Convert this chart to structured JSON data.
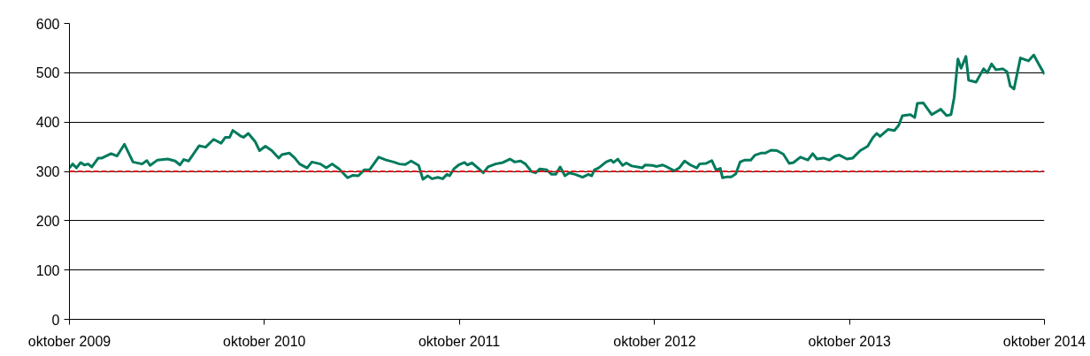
{
  "chart_data": {
    "type": "line",
    "x": [
      "2009-10-01",
      "2009-10-07",
      "2009-10-14",
      "2009-10-22",
      "2009-10-29",
      "2009-11-05",
      "2009-11-12",
      "2009-11-24",
      "2009-12-01",
      "2009-12-18",
      "2009-12-29",
      "2010-01-12",
      "2010-01-28",
      "2010-02-14",
      "2010-02-23",
      "2010-03-01",
      "2010-03-15",
      "2010-04-03",
      "2010-04-17",
      "2010-04-26",
      "2010-05-03",
      "2010-05-12",
      "2010-06-01",
      "2010-06-13",
      "2010-06-28",
      "2010-07-12",
      "2010-07-20",
      "2010-07-28",
      "2010-08-03",
      "2010-08-17",
      "2010-08-23",
      "2010-09-01",
      "2010-09-14",
      "2010-09-22",
      "2010-10-03",
      "2010-10-15",
      "2010-10-28",
      "2010-11-03",
      "2010-11-17",
      "2010-11-27",
      "2010-12-06",
      "2010-12-20",
      "2010-12-29",
      "2011-01-14",
      "2011-01-25",
      "2011-02-05",
      "2011-02-18",
      "2011-03-06",
      "2011-03-16",
      "2011-03-26",
      "2011-04-06",
      "2011-04-16",
      "2011-05-03",
      "2011-05-17",
      "2011-05-31",
      "2011-06-11",
      "2011-06-22",
      "2011-07-03",
      "2011-07-17",
      "2011-07-25",
      "2011-08-03",
      "2011-08-11",
      "2011-08-22",
      "2011-08-31",
      "2011-09-08",
      "2011-09-13",
      "2011-09-21",
      "2011-09-30",
      "2011-10-11",
      "2011-10-16",
      "2011-10-25",
      "2011-11-05",
      "2011-11-15",
      "2011-11-24",
      "2011-12-08",
      "2011-12-22",
      "2012-01-04",
      "2012-01-13",
      "2012-01-24",
      "2012-02-02",
      "2012-02-13",
      "2012-02-21",
      "2012-02-29",
      "2012-03-13",
      "2012-03-22",
      "2012-03-30",
      "2012-04-07",
      "2012-04-16",
      "2012-04-24",
      "2012-05-05",
      "2012-05-19",
      "2012-05-30",
      "2012-06-05",
      "2012-06-10",
      "2012-06-18",
      "2012-07-02",
      "2012-07-11",
      "2012-07-16",
      "2012-07-24",
      "2012-08-02",
      "2012-08-09",
      "2012-08-19",
      "2012-08-30",
      "2012-09-08",
      "2012-09-13",
      "2012-09-27",
      "2012-10-05",
      "2012-10-16",
      "2012-10-24",
      "2012-11-07",
      "2012-11-16",
      "2012-11-26",
      "2012-12-07",
      "2012-12-19",
      "2012-12-24",
      "2013-01-05",
      "2013-01-16",
      "2013-01-24",
      "2013-02-01",
      "2013-02-05",
      "2013-02-14",
      "2013-02-22",
      "2013-03-02",
      "2013-03-10",
      "2013-03-19",
      "2013-03-30",
      "2013-04-07",
      "2013-04-18",
      "2013-04-26",
      "2013-05-07",
      "2013-05-18",
      "2013-05-30",
      "2013-06-10",
      "2013-06-18",
      "2013-07-01",
      "2013-07-15",
      "2013-07-24",
      "2013-08-01",
      "2013-08-13",
      "2013-08-24",
      "2013-09-04",
      "2013-09-12",
      "2013-09-26",
      "2013-10-07",
      "2013-10-21",
      "2013-11-04",
      "2013-11-14",
      "2013-11-21",
      "2013-11-27",
      "2013-12-12",
      "2013-12-24",
      "2014-01-01",
      "2014-01-08",
      "2014-01-23",
      "2014-01-31",
      "2014-02-05",
      "2014-02-16",
      "2014-03-04",
      "2014-03-21",
      "2014-04-01",
      "2014-04-09",
      "2014-04-15",
      "2014-04-22",
      "2014-04-28",
      "2014-05-07",
      "2014-05-12",
      "2014-05-26",
      "2014-06-09",
      "2014-06-16",
      "2014-06-24",
      "2014-07-02",
      "2014-07-15",
      "2014-07-23",
      "2014-07-29",
      "2014-08-05",
      "2014-08-17",
      "2014-09-01",
      "2014-09-11",
      "2014-09-20",
      "2014-10-01"
    ],
    "series": [
      {
        "color": "#007a5c",
        "values": [
          307,
          315,
          307,
          318,
          313,
          315,
          309,
          327,
          327,
          336,
          331,
          355,
          319,
          315,
          322,
          312,
          323,
          325,
          321,
          313,
          324,
          321,
          352,
          349,
          365,
          357,
          369,
          369,
          383,
          372,
          369,
          377,
          360,
          342,
          351,
          342,
          327,
          334,
          337,
          327,
          315,
          307,
          319,
          315,
          307,
          315,
          305,
          287,
          292,
          291,
          303,
          303,
          329,
          323,
          319,
          315,
          314,
          321,
          312,
          284,
          291,
          285,
          288,
          285,
          294,
          291,
          305,
          313,
          318,
          313,
          317,
          307,
          297,
          309,
          315,
          318,
          325,
          319,
          321,
          315,
          300,
          297,
          305,
          303,
          294,
          294,
          309,
          291,
          297,
          294,
          288,
          294,
          291,
          303,
          307,
          319,
          323,
          318,
          325,
          312,
          317,
          311,
          309,
          307,
          313,
          312,
          310,
          313,
          309,
          301,
          307,
          321,
          313,
          307,
          315,
          316,
          322,
          303,
          306,
          287,
          289,
          289,
          295,
          319,
          323,
          323,
          333,
          337,
          337,
          343,
          342,
          335,
          316,
          318,
          329,
          323,
          336,
          325,
          327,
          323,
          331,
          333,
          325,
          327,
          342,
          351,
          369,
          377,
          371,
          385,
          383,
          393,
          413,
          415,
          409,
          438,
          439,
          415,
          426,
          413,
          415,
          450,
          528,
          509,
          533,
          485,
          481,
          508,
          500,
          518,
          506,
          508,
          502,
          473,
          467,
          530,
          524,
          536,
          518,
          497
        ]
      }
    ],
    "xlim": [
      "2009-10-01",
      "2014-10-01"
    ],
    "xticks": [
      {
        "value": "2009-10-01",
        "label": "oktober 2009"
      },
      {
        "value": "2010-10-01",
        "label": "oktober 2010"
      },
      {
        "value": "2011-10-01",
        "label": "oktober 2011"
      },
      {
        "value": "2012-10-01",
        "label": "oktober 2012"
      },
      {
        "value": "2013-10-01",
        "label": "oktober 2013"
      },
      {
        "value": "2014-10-01",
        "label": "oktober 2014"
      }
    ],
    "ylim": [
      0,
      600
    ],
    "yticks": [
      0,
      100,
      200,
      300,
      400,
      500,
      600
    ],
    "grid": "y",
    "line_style": "solid",
    "ref_lines": [
      {
        "axis": "y",
        "value": 300,
        "color": "#e3161b",
        "line_style": "dashed"
      }
    ]
  }
}
